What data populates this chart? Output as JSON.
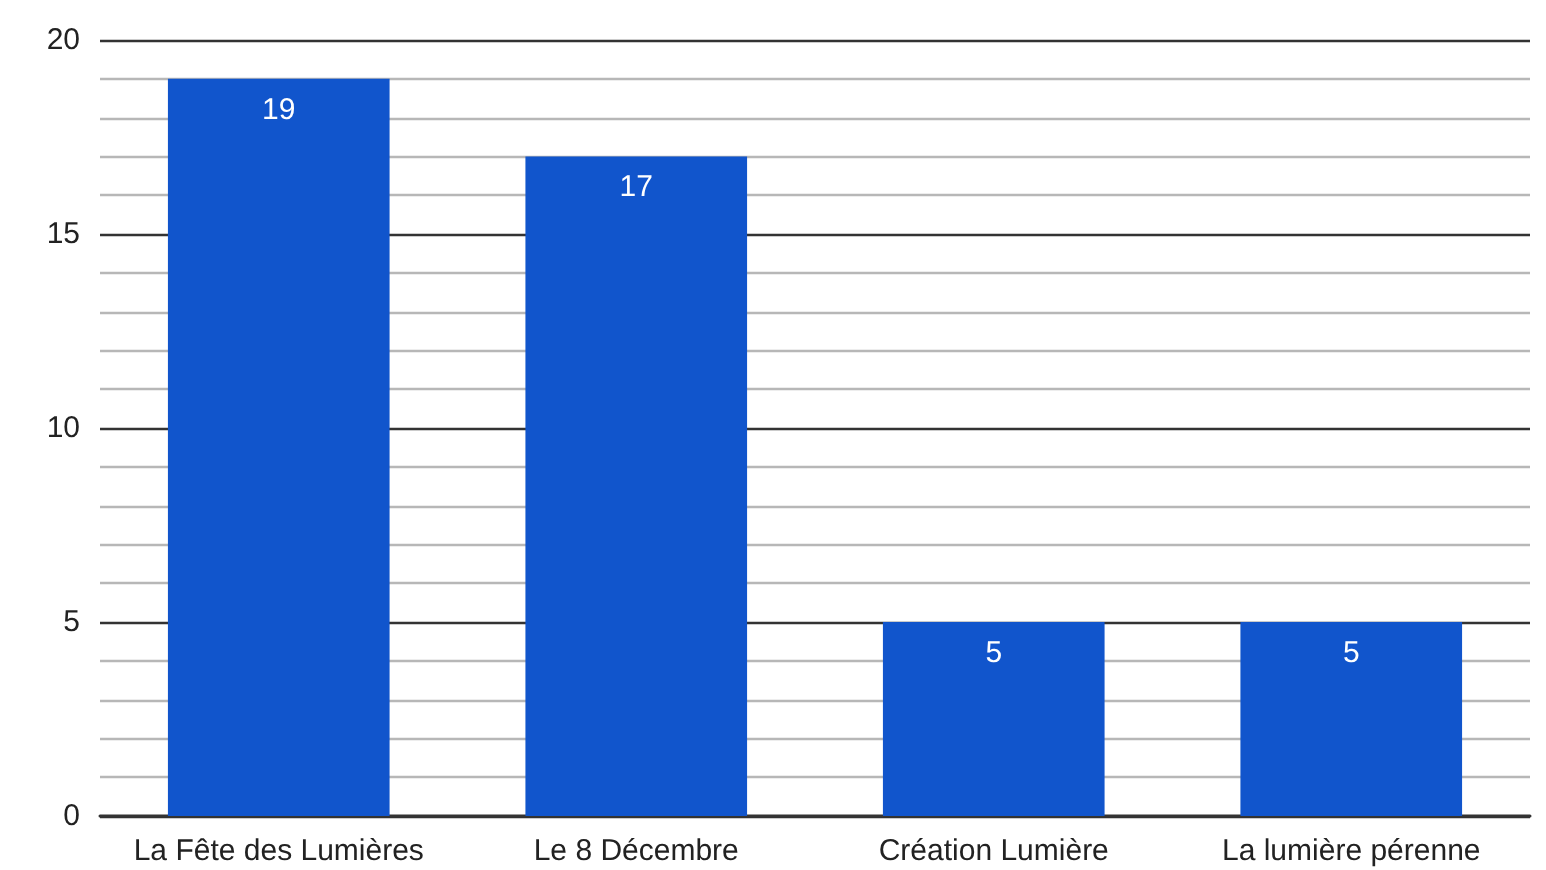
{
  "chart_data": {
    "type": "bar",
    "categories": [
      "La Fête des Lumières",
      "Le 8 Décembre",
      "Création Lumière",
      "La lumière pérenne"
    ],
    "values": [
      19,
      17,
      5,
      5
    ],
    "color": "#1155cc",
    "ylim": [
      0,
      20
    ],
    "yticks": [
      0,
      {
        "value": 1,
        "label": null
      },
      {
        "value": 2,
        "label": null
      },
      {
        "value": 3,
        "label": null
      },
      {
        "value": 4,
        "label": null
      },
      5,
      {
        "value": 6,
        "label": null
      },
      {
        "value": 7,
        "label": null
      },
      {
        "value": 8,
        "label": null
      },
      {
        "value": 9,
        "label": null
      },
      10,
      {
        "value": 11,
        "label": null
      },
      {
        "value": 12,
        "label": null
      },
      {
        "value": 13,
        "label": null
      },
      {
        "value": 14,
        "label": null
      },
      15,
      {
        "value": 16,
        "label": null
      },
      {
        "value": 17,
        "label": null
      },
      {
        "value": 18,
        "label": null
      },
      {
        "value": 19,
        "label": null
      },
      20
    ],
    "grid": true,
    "data_labels": true
  }
}
